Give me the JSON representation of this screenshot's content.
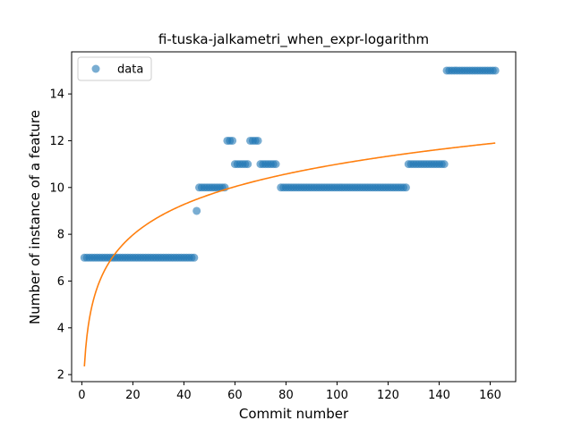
{
  "chart_data": {
    "type": "scatter",
    "title": "fi-tuska-jalkametri_when_expr-logarithm",
    "xlabel": "Commit number",
    "ylabel": "Number of instance of a feature",
    "xlim": [
      -4,
      170
    ],
    "ylim": [
      1.7,
      15.8
    ],
    "x_ticks": [
      0,
      20,
      40,
      60,
      80,
      100,
      120,
      140,
      160
    ],
    "y_ticks": [
      2,
      4,
      6,
      8,
      10,
      12,
      14
    ],
    "grid": false,
    "legend": {
      "position": "top-left",
      "entries": [
        "data"
      ]
    },
    "colors": {
      "data": "#1f77b4",
      "fit": "#ff7f0e"
    },
    "series": [
      {
        "name": "data",
        "kind": "scatter",
        "segments": [
          {
            "x_start": 1,
            "x_end": 44,
            "y": 7
          },
          {
            "x_start": 45,
            "x_end": 45,
            "y": 9
          },
          {
            "x_start": 46,
            "x_end": 56,
            "y": 10
          },
          {
            "x_start": 57,
            "x_end": 59,
            "y": 12
          },
          {
            "x_start": 60,
            "x_end": 65,
            "y": 11
          },
          {
            "x_start": 66,
            "x_end": 69,
            "y": 12
          },
          {
            "x_start": 70,
            "x_end": 76,
            "y": 11
          },
          {
            "x_start": 78,
            "x_end": 127,
            "y": 10
          },
          {
            "x_start": 128,
            "x_end": 142,
            "y": 11
          },
          {
            "x_start": 143,
            "x_end": 162,
            "y": 15
          }
        ]
      },
      {
        "kind": "line",
        "model": "logarithmic",
        "x_range": [
          1,
          162
        ],
        "points": [
          {
            "x": 1,
            "y": 2.35
          },
          {
            "x": 20,
            "y": 7.8
          },
          {
            "x": 40,
            "y": 9.05
          },
          {
            "x": 60,
            "y": 10.0
          },
          {
            "x": 80,
            "y": 10.55
          },
          {
            "x": 100,
            "y": 11.0
          },
          {
            "x": 120,
            "y": 11.35
          },
          {
            "x": 162,
            "y": 11.9
          }
        ]
      }
    ]
  }
}
